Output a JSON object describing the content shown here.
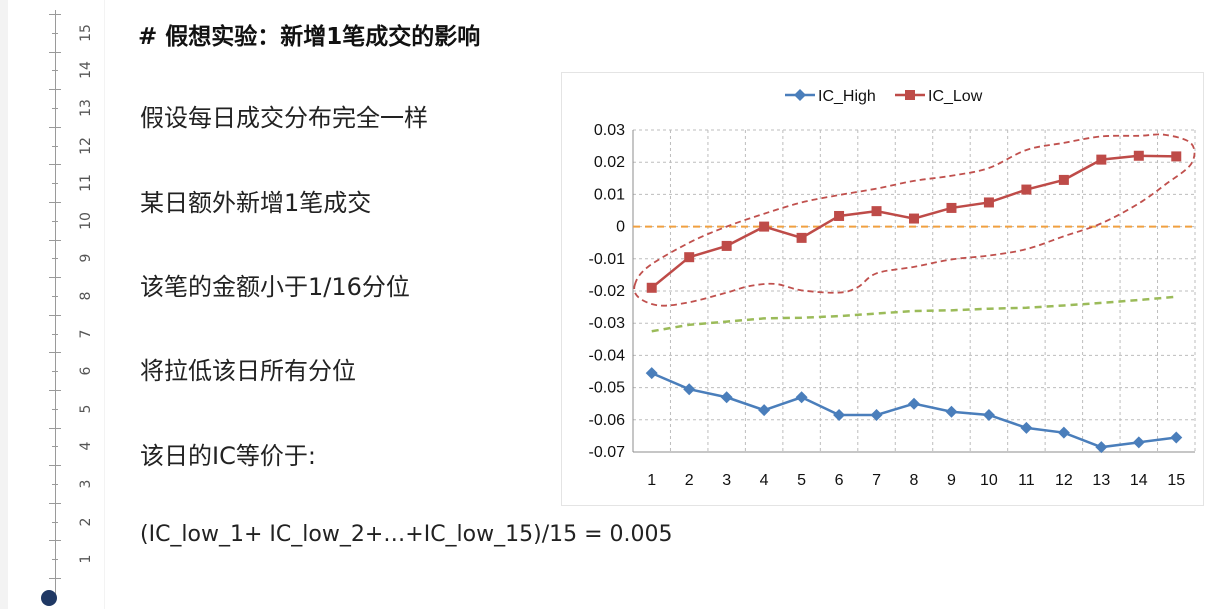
{
  "title": "# 假想实验：新增1笔成交的影响",
  "lines": [
    "假设每日成交分布完全一样",
    "某日额外新增1笔成交",
    "该笔的金额小于1/16分位",
    "将拉低该日所有分位",
    "该日的IC等价于:"
  ],
  "formula": "(IC_low_1+ IC_low_2+…+IC_low_15)/15 = 0.005",
  "ruler": {
    "numbers": [
      "15",
      "14",
      "13",
      "12",
      "11",
      "10",
      "9",
      "8",
      "7",
      "6",
      "5",
      "4",
      "3",
      "2",
      "1"
    ],
    "knob_color": "#1f3864"
  },
  "chart_data": {
    "type": "line",
    "x": [
      1,
      2,
      3,
      4,
      5,
      6,
      7,
      8,
      9,
      10,
      11,
      12,
      13,
      14,
      15
    ],
    "ylim": [
      -0.07,
      0.03
    ],
    "yticks": [
      0.03,
      0.02,
      0.01,
      0,
      -0.01,
      -0.02,
      -0.03,
      -0.04,
      -0.05,
      -0.06,
      -0.07
    ],
    "ytick_labels": [
      "0.03",
      "0.02",
      "0.01",
      "0",
      "-0.01",
      "-0.02",
      "-0.03",
      "-0.04",
      "-0.05",
      "-0.06",
      "-0.07"
    ],
    "grid": true,
    "legend_position": "top-center",
    "series": [
      {
        "name": "IC_High",
        "color": "#4a7ebb",
        "marker": "diamond",
        "values": [
          -0.0455,
          -0.0505,
          -0.053,
          -0.057,
          -0.053,
          -0.0585,
          -0.0585,
          -0.055,
          -0.0575,
          -0.0585,
          -0.0625,
          -0.064,
          -0.0685,
          -0.067,
          -0.0655
        ]
      },
      {
        "name": "IC_Low",
        "color": "#be4b48",
        "marker": "square",
        "values": [
          -0.019,
          -0.0095,
          -0.006,
          0.0,
          -0.0035,
          0.0033,
          0.0048,
          0.0025,
          0.0058,
          0.0075,
          0.0115,
          0.0145,
          0.0208,
          0.022,
          0.0218
        ]
      }
    ],
    "reference_lines": [
      {
        "kind": "horizontal",
        "y": 0,
        "color": "#f0a040",
        "style": "dashed"
      },
      {
        "kind": "trend",
        "color": "#9bbb59",
        "style": "dashed",
        "points": [
          [
            1,
            -0.0325
          ],
          [
            2,
            -0.0305
          ],
          [
            3,
            -0.0295
          ],
          [
            4,
            -0.0285
          ],
          [
            5,
            -0.0283
          ],
          [
            6,
            -0.0278
          ],
          [
            7,
            -0.027
          ],
          [
            8,
            -0.0262
          ],
          [
            9,
            -0.026
          ],
          [
            10,
            -0.0255
          ],
          [
            11,
            -0.0252
          ],
          [
            12,
            -0.0245
          ],
          [
            13,
            -0.0237
          ],
          [
            14,
            -0.0228
          ],
          [
            15,
            -0.0218
          ]
        ]
      }
    ],
    "annotation_envelope": {
      "color": "#c0504d",
      "style": "dashed",
      "upper": [
        [
          0.55,
          -0.018
        ],
        [
          0.9,
          -0.0125
        ],
        [
          2,
          -0.005
        ],
        [
          3,
          0.0
        ],
        [
          4,
          0.004
        ],
        [
          5,
          0.0075
        ],
        [
          6,
          0.0098
        ],
        [
          7,
          0.0118
        ],
        [
          8,
          0.0142
        ],
        [
          9,
          0.0158
        ],
        [
          10,
          0.0182
        ],
        [
          11,
          0.0238
        ],
        [
          12,
          0.026
        ],
        [
          13,
          0.028
        ],
        [
          14,
          0.0282
        ],
        [
          14.7,
          0.0285
        ],
        [
          15.4,
          0.0258
        ]
      ],
      "lower": [
        [
          15.4,
          0.0195
        ],
        [
          14.7,
          0.013
        ],
        [
          14,
          0.0072
        ],
        [
          13,
          0.001
        ],
        [
          12,
          -0.003
        ],
        [
          11,
          -0.007
        ],
        [
          10,
          -0.009
        ],
        [
          9,
          -0.0102
        ],
        [
          8,
          -0.0125
        ],
        [
          7,
          -0.0145
        ],
        [
          6.5,
          -0.0188
        ],
        [
          6,
          -0.0205
        ],
        [
          5,
          -0.0198
        ],
        [
          4.3,
          -0.0178
        ],
        [
          3.6,
          -0.0185
        ],
        [
          3,
          -0.0205
        ],
        [
          2,
          -0.0235
        ],
        [
          1.2,
          -0.0245
        ],
        [
          0.65,
          -0.022
        ]
      ]
    }
  }
}
